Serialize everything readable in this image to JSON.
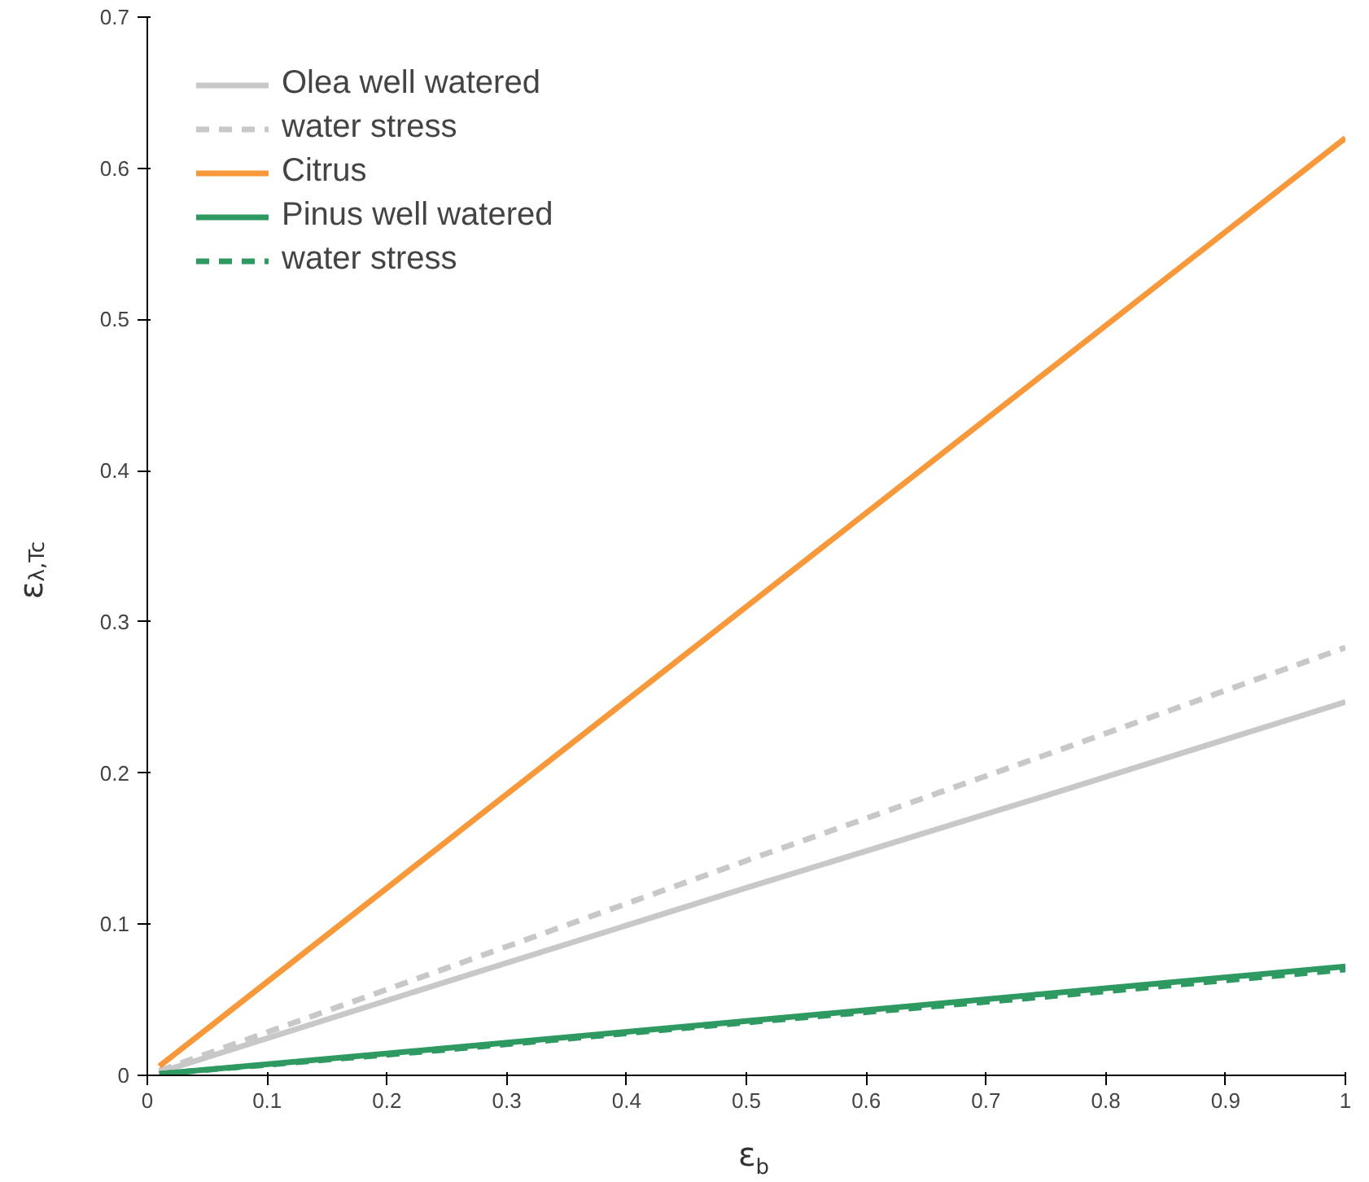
{
  "chart_data": {
    "type": "line",
    "xlabel": "ε$_{b}$",
    "ylabel": "ε$_{λ,Tc}$",
    "xlim": [
      0,
      1
    ],
    "ylim": [
      0,
      0.7
    ],
    "xticks": [
      0,
      0.1,
      0.2,
      0.3,
      0.4,
      0.5,
      0.6,
      0.7,
      0.8,
      0.9,
      1
    ],
    "yticks": [
      0,
      0.1,
      0.2,
      0.3,
      0.4,
      0.5,
      0.6,
      0.7
    ],
    "grid": false,
    "legend": "top left",
    "marker": "none",
    "series": [
      {
        "name": "Olea well watered",
        "color": "#c8c8c8",
        "line_style": "solid",
        "x": [
          0.01,
          0.25,
          0.5,
          0.75,
          1
        ],
        "values": [
          0.002,
          0.062,
          0.124,
          0.185,
          0.247
        ]
      },
      {
        "name": "water stress",
        "color": "#c8c8c8",
        "line_style": "dashed",
        "x": [
          0.01,
          0.25,
          0.5,
          0.75,
          1
        ],
        "values": [
          0.003,
          0.071,
          0.142,
          0.212,
          0.283
        ]
      },
      {
        "name": "Citrus",
        "color": "#f7993a",
        "line_style": "solid",
        "x": [
          0.01,
          0.25,
          0.5,
          0.75,
          1
        ],
        "values": [
          0.006,
          0.155,
          0.31,
          0.465,
          0.62
        ]
      },
      {
        "name": "Pinus well watered",
        "color": "#2e9a62",
        "line_style": "solid",
        "x": [
          0.01,
          0.25,
          0.5,
          0.75,
          1
        ],
        "values": [
          0.001,
          0.018,
          0.036,
          0.054,
          0.072
        ]
      },
      {
        "name": "water stress",
        "color": "#2e9a62",
        "line_style": "dashed",
        "x": [
          0.01,
          0.25,
          0.5,
          0.75,
          1
        ],
        "values": [
          0.001,
          0.017,
          0.035,
          0.052,
          0.07
        ]
      }
    ]
  }
}
